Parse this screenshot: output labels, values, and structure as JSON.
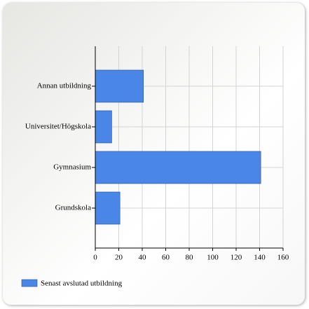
{
  "chart_data": {
    "type": "bar",
    "orientation": "horizontal",
    "categories": [
      "Annan utbildning",
      "Universitet/Högskola",
      "Gymnasium",
      "Grundskola"
    ],
    "series": [
      {
        "name": "Senast avslutad utbildning",
        "color": "#4a86e8",
        "values": [
          41,
          14,
          141,
          21
        ]
      }
    ],
    "xlim": [
      0,
      160
    ],
    "xticks": [
      0,
      20,
      40,
      60,
      80,
      100,
      120,
      140,
      160
    ],
    "grid": true,
    "legend_position": "bottom-left"
  }
}
